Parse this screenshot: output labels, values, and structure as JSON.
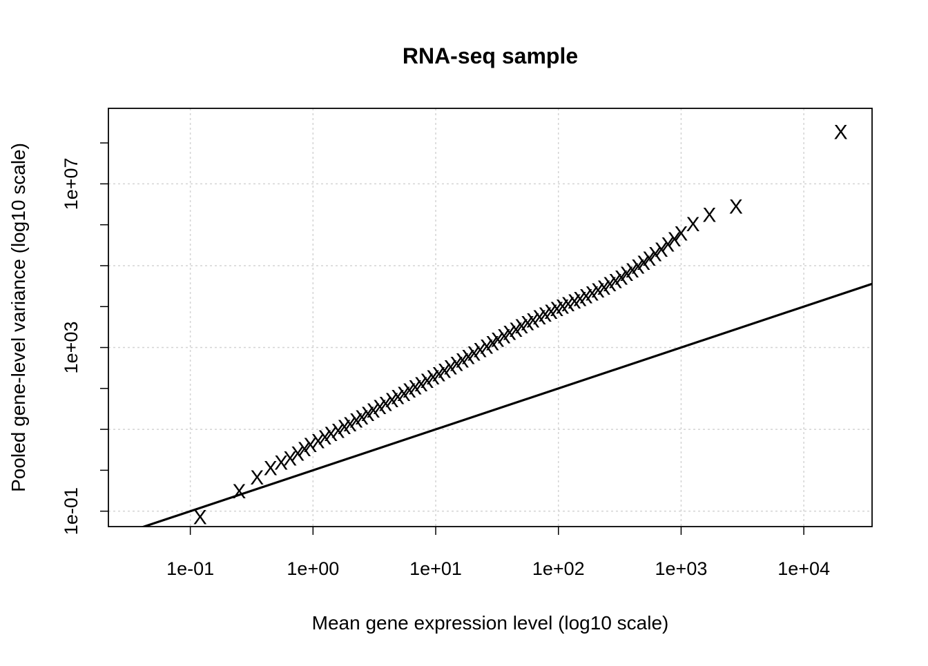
{
  "chart_data": {
    "type": "scatter",
    "title": "RNA-seq sample",
    "xlabel": "Mean gene expression level (log10 scale)",
    "ylabel": "Pooled gene-level variance (log10 scale)",
    "x_scale": "log10",
    "y_scale": "log10",
    "xlim": [
      0.0215,
      36000
    ],
    "ylim": [
      0.042,
      700000000.0
    ],
    "x_ticks": [
      0.1,
      1,
      10,
      100,
      1000,
      10000
    ],
    "x_tick_labels": [
      "1e-01",
      "1e+00",
      "1e+01",
      "1e+02",
      "1e+03",
      "1e+04"
    ],
    "y_ticks": [
      0.1,
      1000,
      10000000
    ],
    "y_tick_labels": [
      "1e-01",
      "1e+03",
      "1e+07"
    ],
    "grid": true,
    "point_marker": "X",
    "point_color": "#8B0000",
    "line_color": "#000000",
    "reference_line": {
      "label": "",
      "relation": "y = x"
    },
    "series": [
      {
        "points": [
          [
            0.12,
            0.07
          ],
          [
            0.25,
            0.3
          ],
          [
            0.35,
            0.65
          ],
          [
            0.45,
            1.1
          ],
          [
            0.55,
            1.5
          ],
          [
            0.65,
            1.9
          ],
          [
            0.75,
            2.5
          ],
          [
            0.85,
            3.2
          ],
          [
            0.95,
            4.0
          ],
          [
            1.1,
            5.0
          ],
          [
            1.25,
            6.2
          ],
          [
            1.4,
            7.5
          ],
          [
            1.6,
            9.0
          ],
          [
            1.8,
            11
          ],
          [
            2.0,
            13
          ],
          [
            2.25,
            16
          ],
          [
            2.5,
            19
          ],
          [
            2.8,
            23
          ],
          [
            3.1,
            28
          ],
          [
            3.5,
            34
          ],
          [
            3.9,
            41
          ],
          [
            4.4,
            50
          ],
          [
            4.9,
            60
          ],
          [
            5.5,
            72
          ],
          [
            6.1,
            86
          ],
          [
            6.8,
            103
          ],
          [
            7.6,
            124
          ],
          [
            8.5,
            150
          ],
          [
            9.5,
            180
          ],
          [
            10.6,
            215
          ],
          [
            11.8,
            260
          ],
          [
            13.2,
            320
          ],
          [
            14.8,
            390
          ],
          [
            16.5,
            470
          ],
          [
            18.4,
            570
          ],
          [
            20.5,
            690
          ],
          [
            23,
            840
          ],
          [
            26,
            1020
          ],
          [
            29,
            1240
          ],
          [
            32,
            1500
          ],
          [
            36,
            1820
          ],
          [
            40,
            2200
          ],
          [
            45,
            2650
          ],
          [
            50,
            3200
          ],
          [
            56,
            3800
          ],
          [
            62,
            4500
          ],
          [
            70,
            5300
          ],
          [
            78,
            6200
          ],
          [
            87,
            7200
          ],
          [
            97,
            8400
          ],
          [
            108,
            9700
          ],
          [
            120,
            11200
          ],
          [
            135,
            13000
          ],
          [
            150,
            15000
          ],
          [
            168,
            17500
          ],
          [
            188,
            20500
          ],
          [
            210,
            24000
          ],
          [
            235,
            28500
          ],
          [
            262,
            34000
          ],
          [
            292,
            41000
          ],
          [
            325,
            50000
          ],
          [
            360,
            61000
          ],
          [
            400,
            75000
          ],
          [
            445,
            92000
          ],
          [
            495,
            115000
          ],
          [
            550,
            145000
          ],
          [
            615,
            185000
          ],
          [
            690,
            240000
          ],
          [
            780,
            320000
          ],
          [
            880,
            430000
          ],
          [
            1000,
            600000
          ],
          [
            1250,
            1000000
          ],
          [
            1700,
            1700000
          ],
          [
            2800,
            2700000
          ],
          [
            20000,
            180000000
          ]
        ]
      }
    ]
  }
}
